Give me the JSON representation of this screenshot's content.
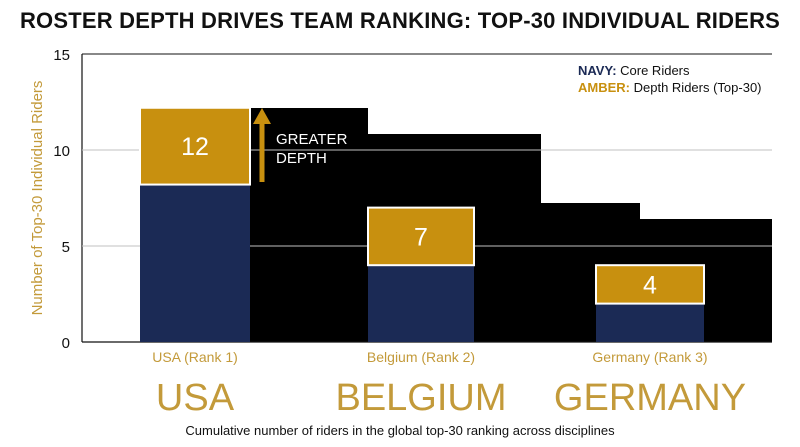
{
  "title": "ROSTER DEPTH DRIVES TEAM RANKING: TOP-30 INDIVIDUAL RIDERS",
  "caption": "Cumulative number of riders in the global top-30 ranking across disciplines",
  "legend": {
    "navy_key": "NAVY:",
    "navy_text": "Core Riders",
    "amber_key": "AMBER:",
    "amber_text": "Depth Riders (Top-30)"
  },
  "annotation": {
    "line1": "GREATER",
    "line2": "DEPTH"
  },
  "colors": {
    "navy": "#1b2a55",
    "amber": "#c8900f",
    "amber_text": "#c39a3a",
    "background_panel": "#000000",
    "grid": "#c0c0c0"
  },
  "chart_data": {
    "type": "bar",
    "stacked": true,
    "categories": [
      "USA (Rank 1)",
      "Belgium (Rank 2)",
      "Germany (Rank 3)"
    ],
    "big_labels": [
      "USA",
      "BELGIUM",
      "GERMANY"
    ],
    "ylabel": "Number of Top-30 Individual Riders",
    "xlabel": "",
    "ylim": [
      0,
      15
    ],
    "yticks": [
      0,
      5,
      10,
      15
    ],
    "grid": true,
    "legend_position": "top-right",
    "series": [
      {
        "name": "Core Riders",
        "color": "#1b2a55",
        "values": [
          8.2,
          4,
          2
        ]
      },
      {
        "name": "Depth Riders (Top-30)",
        "color": "#c8900f",
        "values": [
          4,
          3,
          2
        ]
      }
    ],
    "totals": [
      12,
      7,
      4
    ]
  }
}
